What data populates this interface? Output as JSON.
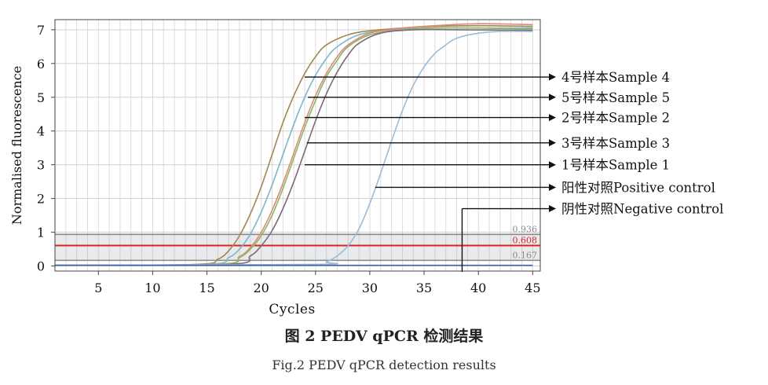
{
  "chart_data": {
    "type": "line",
    "xlabel": "Cycles",
    "ylabel": "Normalised fluorescence",
    "xlim": [
      1,
      45.7
    ],
    "ylim": [
      -0.15,
      7.3
    ],
    "x_ticks": [
      5,
      10,
      15,
      20,
      25,
      30,
      35,
      40,
      45
    ],
    "y_ticks": [
      0,
      1,
      2,
      3,
      4,
      5,
      6,
      7
    ],
    "grid": true,
    "threshold_band": [
      0.167,
      0.936
    ],
    "threshold_lines": [
      {
        "label": "0.936",
        "value": 0.936,
        "color": "#888888"
      },
      {
        "label": "0.608",
        "value": 0.608,
        "color": "#dd2222"
      },
      {
        "label": "0.167",
        "value": 0.167,
        "color": "#888888"
      }
    ],
    "series": [
      {
        "name": "4号样本Sample 4",
        "color": "#a08850",
        "values": [
          [
            1,
            0.02
          ],
          [
            14,
            0.05
          ],
          [
            16,
            0.2
          ],
          [
            17,
            0.45
          ],
          [
            18,
            0.9
          ],
          [
            19,
            1.55
          ],
          [
            20,
            2.35
          ],
          [
            21,
            3.3
          ],
          [
            22,
            4.25
          ],
          [
            23,
            5.05
          ],
          [
            24,
            5.7
          ],
          [
            25,
            6.2
          ],
          [
            26,
            6.55
          ],
          [
            28,
            6.85
          ],
          [
            30,
            6.97
          ],
          [
            33,
            7.05
          ],
          [
            36,
            7.1
          ],
          [
            40,
            7.12
          ],
          [
            45,
            7.1
          ]
        ]
      },
      {
        "name": "5号样本Sample 5",
        "color": "#7ab8c8",
        "values": [
          [
            1,
            0.02
          ],
          [
            15,
            0.05
          ],
          [
            17,
            0.25
          ],
          [
            18,
            0.5
          ],
          [
            19,
            0.95
          ],
          [
            20,
            1.6
          ],
          [
            21,
            2.4
          ],
          [
            22,
            3.3
          ],
          [
            23,
            4.2
          ],
          [
            24,
            5.0
          ],
          [
            25,
            5.65
          ],
          [
            26,
            6.15
          ],
          [
            27,
            6.5
          ],
          [
            29,
            6.85
          ],
          [
            32,
            7.0
          ],
          [
            36,
            7.05
          ],
          [
            40,
            7.05
          ],
          [
            45,
            7.05
          ]
        ]
      },
      {
        "name": "2号样本Sample 2",
        "color": "#e08878",
        "values": [
          [
            1,
            0.02
          ],
          [
            16,
            0.05
          ],
          [
            18,
            0.28
          ],
          [
            19,
            0.55
          ],
          [
            20,
            1.0
          ],
          [
            21,
            1.65
          ],
          [
            22,
            2.45
          ],
          [
            23,
            3.35
          ],
          [
            24,
            4.25
          ],
          [
            25,
            5.05
          ],
          [
            26,
            5.7
          ],
          [
            27,
            6.2
          ],
          [
            28,
            6.55
          ],
          [
            30,
            6.9
          ],
          [
            33,
            7.05
          ],
          [
            36,
            7.12
          ],
          [
            40,
            7.18
          ],
          [
            45,
            7.15
          ]
        ]
      },
      {
        "name": "3号样本Sample 3",
        "color": "#88b868",
        "values": [
          [
            1,
            0.02
          ],
          [
            16,
            0.05
          ],
          [
            18,
            0.25
          ],
          [
            19,
            0.5
          ],
          [
            20,
            0.9
          ],
          [
            21,
            1.5
          ],
          [
            22,
            2.3
          ],
          [
            23,
            3.2
          ],
          [
            24,
            4.1
          ],
          [
            25,
            4.9
          ],
          [
            26,
            5.6
          ],
          [
            27,
            6.1
          ],
          [
            28,
            6.5
          ],
          [
            30,
            6.85
          ],
          [
            33,
            7.0
          ],
          [
            36,
            7.05
          ],
          [
            40,
            7.05
          ],
          [
            45,
            7.02
          ]
        ]
      },
      {
        "name": "1号样本Sample 1",
        "color": "#806878",
        "values": [
          [
            1,
            0.02
          ],
          [
            17,
            0.05
          ],
          [
            19,
            0.3
          ],
          [
            20,
            0.6
          ],
          [
            21,
            1.05
          ],
          [
            22,
            1.7
          ],
          [
            23,
            2.5
          ],
          [
            24,
            3.4
          ],
          [
            25,
            4.3
          ],
          [
            26,
            5.1
          ],
          [
            27,
            5.75
          ],
          [
            28,
            6.25
          ],
          [
            29,
            6.6
          ],
          [
            31,
            6.9
          ],
          [
            34,
            7.0
          ],
          [
            38,
            7.0
          ],
          [
            45,
            6.98
          ]
        ]
      },
      {
        "name": "阳性对照Positive control",
        "color": "#9cbcd8",
        "values": [
          [
            1,
            0.02
          ],
          [
            25,
            0.05
          ],
          [
            26,
            0.12
          ],
          [
            27,
            0.3
          ],
          [
            28,
            0.6
          ],
          [
            29,
            1.1
          ],
          [
            30,
            1.85
          ],
          [
            31,
            2.75
          ],
          [
            32,
            3.7
          ],
          [
            33,
            4.6
          ],
          [
            34,
            5.35
          ],
          [
            35,
            5.9
          ],
          [
            36,
            6.3
          ],
          [
            37,
            6.55
          ],
          [
            38,
            6.75
          ],
          [
            40,
            6.9
          ],
          [
            42,
            6.95
          ],
          [
            45,
            6.95
          ]
        ]
      },
      {
        "name": "阴性对照Negative control",
        "color": "#4466aa",
        "values": [
          [
            1,
            0.02
          ],
          [
            10,
            0.02
          ],
          [
            20,
            0.02
          ],
          [
            30,
            0.02
          ],
          [
            40,
            0.02
          ],
          [
            45,
            0.02
          ]
        ]
      }
    ]
  },
  "annotations": [
    {
      "series": 0,
      "text": "4号样本Sample 4",
      "point": [
        24,
        5.6
      ],
      "label_y": 5.6
    },
    {
      "series": 1,
      "text": "5号样本Sample 5",
      "point": [
        24.3,
        5.0
      ],
      "label_y": 5.0
    },
    {
      "series": 2,
      "text": "2号样本Sample 2",
      "point": [
        24,
        4.4
      ],
      "label_y": 4.4
    },
    {
      "series": 3,
      "text": "3号样本Sample 3",
      "point": [
        24.2,
        3.65
      ],
      "label_y": 3.65
    },
    {
      "series": 4,
      "text": "1号样本Sample 1",
      "point": [
        24,
        3.0
      ],
      "label_y": 3.0
    },
    {
      "series": 5,
      "text": "阳性对照Positive control",
      "point": [
        30.5,
        2.33
      ],
      "label_y": 2.33
    },
    {
      "series": 6,
      "text": "阴性对照Negative control",
      "point": [
        38.5,
        1.7
      ],
      "label_y": 1.7
    }
  ],
  "caption": {
    "cn": "图 2   PEDV qPCR 检测结果",
    "en": "Fig.2   PEDV qPCR detection results"
  }
}
